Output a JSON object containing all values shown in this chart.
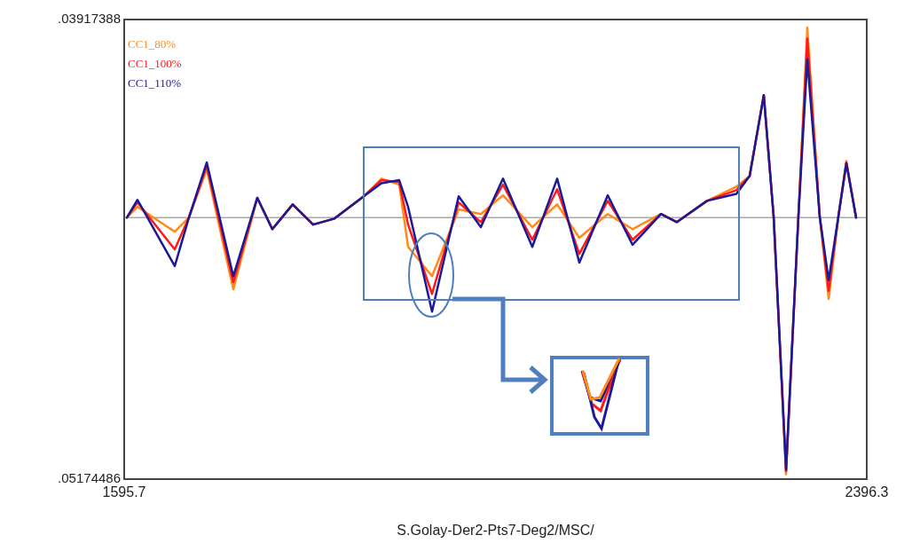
{
  "chart_data": {
    "type": "line",
    "xlabel": "S.Golay-Der2-Pts7-Deg2/MSC/",
    "x": [
      1598.6,
      1610.0,
      1650.2,
      1665.5,
      1684.7,
      1713.3,
      1739.2,
      1755.4,
      1777.4,
      1799.4,
      1822.4,
      1854.0,
      1873.1,
      1892.2,
      1901.8,
      1927.6,
      1956.3,
      1980.2,
      2004.1,
      2035.7,
      2062.5,
      2086.4,
      2117.0,
      2143.8,
      2174.4,
      2191.6,
      2224.1,
      2255.7,
      2270.0,
      2285.3,
      2295.9,
      2309.3,
      2322.6,
      2332.2,
      2345.6,
      2355.2,
      2365.7,
      2374.3,
      2384.8
    ],
    "series": [
      {
        "name": "CC1_80%",
        "color": "#ff8c1a",
        "values": [
          0,
          0.0021,
          -0.0028,
          0,
          0.0095,
          -0.0142,
          0.0039,
          -0.0023,
          0.0026,
          -0.0014,
          -0.0002,
          0.0042,
          0.0077,
          0.0065,
          -0.0058,
          -0.0116,
          0.0016,
          0.0007,
          0.0044,
          -0.0019,
          0.0026,
          -0.004,
          0.0007,
          -0.0023,
          0.0007,
          -0.0009,
          0.0033,
          0.0061,
          0.0082,
          0.0242,
          0.0002,
          -0.0508,
          0.0002,
          0.0376,
          0.0002,
          -0.0161,
          0.0002,
          0.0112,
          0
        ]
      },
      {
        "name": "CC1_100%",
        "color": "#ff1a1a",
        "values": [
          0,
          0.003,
          -0.0063,
          0,
          0.0102,
          -0.0128,
          0.0039,
          -0.0023,
          0.0026,
          -0.0014,
          -0.0002,
          0.0042,
          0.0074,
          0.007,
          -0.0014,
          -0.0151,
          0.003,
          -0.0009,
          0.0065,
          -0.0044,
          0.0056,
          -0.0072,
          0.0033,
          -0.0044,
          0.0007,
          -0.0009,
          0.0033,
          0.0054,
          0.0082,
          0.0242,
          0.0002,
          -0.0502,
          0.0002,
          0.0354,
          0.0002,
          -0.0145,
          0.0002,
          0.0109,
          0
        ]
      },
      {
        "name": "CC1_110%",
        "color": "#1a1a99",
        "values": [
          0,
          0.0035,
          -0.0096,
          0,
          0.0109,
          -0.0116,
          0.0039,
          -0.0023,
          0.0026,
          -0.0014,
          -0.0002,
          0.0042,
          0.0068,
          0.0074,
          0.0021,
          -0.0186,
          0.0042,
          -0.0019,
          0.0077,
          -0.0058,
          0.0077,
          -0.0089,
          0.0044,
          -0.0054,
          0.0007,
          -0.0009,
          0.0033,
          0.0047,
          0.0082,
          0.0242,
          0.0002,
          -0.0499,
          0.0002,
          0.0313,
          0.0002,
          -0.0124,
          0.0002,
          0.0107,
          0
        ]
      }
    ],
    "xlim": [
      1595.7,
      2396.3
    ],
    "xticks": [
      1595.7,
      2396.3
    ],
    "ylim": [
      -0.05174486,
      0.03917388
    ],
    "yticks": [
      {
        "value": -0.05174486,
        "label": ".05174486"
      },
      {
        "value": 0.03917388,
        "label": ".03917388"
      }
    ],
    "ref_lines": [
      {
        "axis": "y",
        "value": 0,
        "color": "#aaaaaa"
      }
    ],
    "legend": "top left",
    "marker": "none",
    "line_style": "solid"
  }
}
